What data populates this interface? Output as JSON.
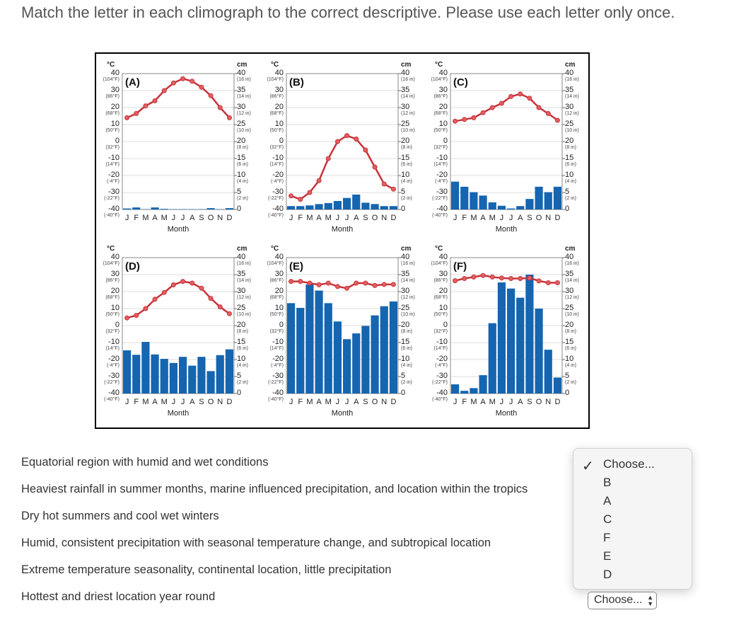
{
  "instructions": "Match the letter in each climograph to the correct descriptive. Please use each letter only once.",
  "questions": [
    "Equatorial region with humid and wet conditions",
    "Heaviest rainfall in summer months, marine influenced precipitation, and location within the tropics",
    "Dry hot summers and cool wet winters",
    "Humid, consistent precipitation with seasonal temperature change, and subtropical location",
    "Extreme temperature seasonality, continental location, little precipitation",
    "Hottest and driest location year round"
  ],
  "dropdown": {
    "selected": "Choose...",
    "options": [
      "Choose...",
      "B",
      "A",
      "C",
      "F",
      "E",
      "D"
    ],
    "check_icon": "checkmark"
  },
  "select_label": "Choose...",
  "colors": {
    "temperature": "#c8323a",
    "precipitation": "#1565b0"
  },
  "chart_data": {
    "type": "climograph",
    "months": [
      "J",
      "F",
      "M",
      "A",
      "M",
      "J",
      "J",
      "A",
      "S",
      "O",
      "N",
      "D"
    ],
    "xlabel": "Month",
    "left_unit": "°C",
    "right_unit": "cm",
    "left_ticks": [
      [
        "40",
        "(104°F)"
      ],
      [
        "30",
        "(86°F)"
      ],
      [
        "20",
        "(68°F)"
      ],
      [
        "10",
        "(50°F)"
      ],
      [
        "0",
        "(32°F)"
      ],
      [
        "-10",
        "(14°F)"
      ],
      [
        "-20",
        "(-4°F)"
      ],
      [
        "-30",
        "(-22°F)"
      ],
      [
        "-40",
        "(-40°F)"
      ]
    ],
    "right_ticks": [
      [
        "40",
        "(16 in)"
      ],
      [
        "35",
        "(14 in)"
      ],
      [
        "30",
        "(12 in)"
      ],
      [
        "25",
        "(10 in)"
      ],
      [
        "20",
        "(8 in)"
      ],
      [
        "15",
        "(6 in)"
      ],
      [
        "10",
        "(4 in)"
      ],
      [
        "5",
        "(2 in)"
      ],
      [
        "0",
        ""
      ]
    ],
    "temp_range_c": [
      -40,
      40
    ],
    "precip_range_cm": [
      0,
      40
    ],
    "grid": true,
    "panels": [
      {
        "label": "(A)",
        "temp_c": [
          14,
          16.5,
          21,
          24,
          30,
          34.5,
          37,
          35.5,
          32,
          27,
          20,
          14
        ],
        "precip_cm": [
          0.3,
          0.6,
          0.1,
          0.6,
          0.2,
          0.1,
          0.1,
          0.1,
          0.1,
          0.4,
          0.1,
          0.4
        ]
      },
      {
        "label": "(B)",
        "temp_c": [
          -32,
          -34,
          -30,
          -23,
          -10,
          0,
          3.5,
          1.5,
          -5,
          -15,
          -25,
          -28
        ],
        "precip_cm": [
          1,
          1,
          1.2,
          1.6,
          1.9,
          2.5,
          3.4,
          4.4,
          2,
          1.6,
          1,
          1
        ]
      },
      {
        "label": "(C)",
        "temp_c": [
          12,
          13,
          14,
          17,
          20,
          22.5,
          26.5,
          28,
          25.5,
          20,
          16.5,
          12.5
        ],
        "precip_cm": [
          8.2,
          6.7,
          5.1,
          4.1,
          2.1,
          1.1,
          0.3,
          1,
          3.1,
          6.7,
          5.1,
          6.7
        ]
      },
      {
        "label": "(D)",
        "temp_c": [
          4.5,
          6,
          10,
          15.5,
          19.5,
          24,
          26,
          25,
          22,
          16,
          11,
          7
        ],
        "precip_cm": [
          12.7,
          11.4,
          15.2,
          11.5,
          10.2,
          9,
          10.8,
          8.2,
          10.8,
          6.6,
          11.3,
          13
        ]
      },
      {
        "label": "(E)",
        "temp_c": [
          26,
          26,
          25,
          24,
          25,
          23,
          22,
          25,
          25,
          23.6,
          24.2,
          24.2
        ],
        "precip_cm": [
          26.6,
          25.2,
          32.1,
          30.3,
          26.6,
          21.2,
          16,
          17.7,
          19.9,
          23,
          25.7,
          27.1
        ]
      },
      {
        "label": "(F)",
        "temp_c": [
          26.4,
          27.7,
          28.6,
          29.5,
          28.6,
          28,
          27.7,
          27.7,
          28,
          26.3,
          25.2,
          25.2
        ],
        "precip_cm": [
          2.7,
          0.8,
          1.6,
          5.4,
          20.7,
          32.7,
          30.9,
          28.2,
          35,
          25,
          12.9,
          4.7
        ]
      }
    ]
  }
}
